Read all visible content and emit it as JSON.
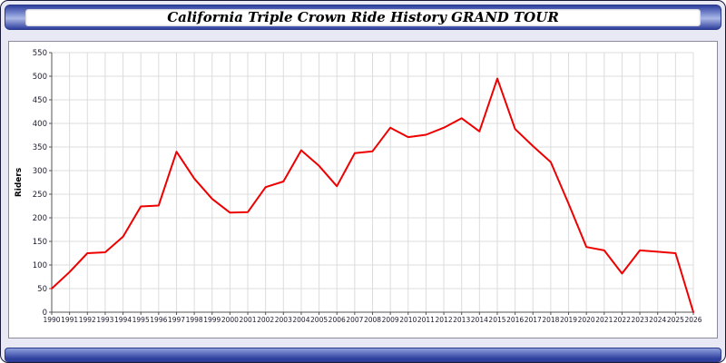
{
  "window": {
    "title": "California Triple Crown Ride History GRAND TOUR"
  },
  "colors": {
    "chrome_blue_dark": "#2e3f9e",
    "chrome_blue_light": "#aab7e6",
    "window_background": "#e9e9f6",
    "plot_background": "#ffffff",
    "gridline": "#dcdcdc",
    "axis": "#555555",
    "line": "#ee0000",
    "tick_label": "#1a1a2e"
  },
  "chart_data": {
    "type": "line",
    "title": "California Triple Crown Ride History GRAND TOUR",
    "x": [
      1990,
      1991,
      1992,
      1993,
      1994,
      1995,
      1996,
      1997,
      1998,
      1999,
      2000,
      2001,
      2002,
      2003,
      2004,
      2005,
      2006,
      2007,
      2008,
      2009,
      2010,
      2011,
      2012,
      2013,
      2014,
      2015,
      2016,
      2017,
      2018,
      2019,
      2020,
      2021,
      2022,
      2023,
      2024,
      2025,
      2026
    ],
    "series": [
      {
        "name": "Riders",
        "color": "#ee0000",
        "values": [
          50,
          85,
          125,
          127,
          160,
          224,
          226,
          340,
          283,
          240,
          211,
          212,
          265,
          277,
          343,
          310,
          267,
          337,
          341,
          391,
          371,
          376,
          391,
          411,
          383,
          495,
          388,
          352,
          318,
          230,
          138,
          131,
          82,
          131,
          128,
          125,
          0
        ]
      }
    ],
    "xlabel": "",
    "ylabel": "Riders",
    "ylim": [
      0,
      550
    ],
    "ytick_step": 50,
    "grid": true,
    "legend_position": "none",
    "line_width": 2
  }
}
